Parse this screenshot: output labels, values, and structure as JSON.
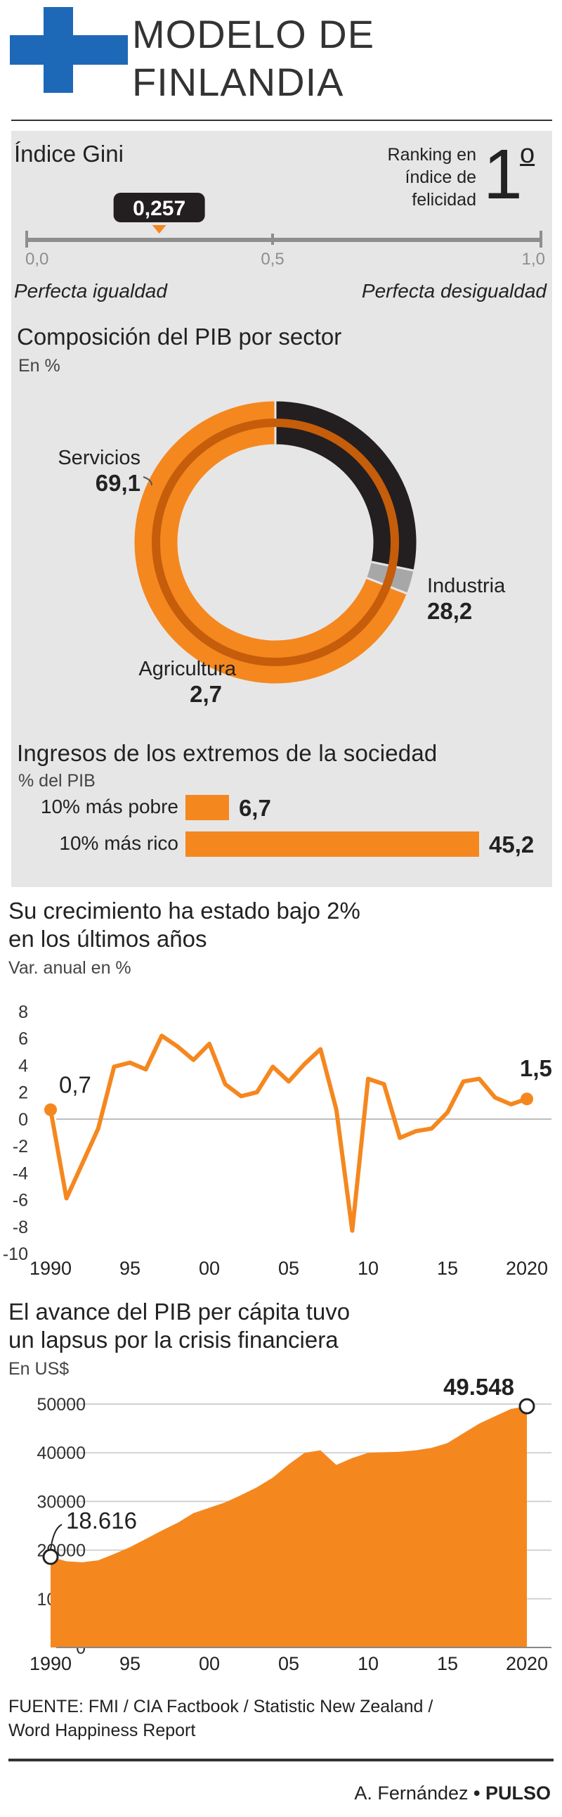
{
  "header": {
    "title_line1": "MODELO DE",
    "title_line2": "FINLANDIA",
    "flag_colors": {
      "cross": "#1e68b8",
      "field": "#ffffff"
    }
  },
  "gini": {
    "title": "Índice Gini",
    "value": "0,257",
    "value_num": 0.257,
    "tick_labels": [
      "0,0",
      "0,5",
      "1,0"
    ],
    "left_label": "Perfecta igualdad",
    "right_label": "Perfecta desigualdad"
  },
  "ranking": {
    "label_lines": [
      "Ranking en",
      "índice de",
      "felicidad"
    ],
    "value": "1",
    "suffix": "o"
  },
  "pib_sector": {
    "title": "Composición del PIB por sector",
    "unit": "En %",
    "chart_data": {
      "type": "pie",
      "categories": [
        "Servicios",
        "Industria",
        "Agricultura"
      ],
      "values": [
        69.1,
        28.2,
        2.7
      ],
      "value_labels": [
        "69,1",
        "28,2",
        "2,7"
      ],
      "colors": [
        "#f5871f",
        "#231f20",
        "#a7a7a7"
      ]
    }
  },
  "ingresos": {
    "title": "Ingresos de los extremos de la sociedad",
    "unit": "% del PIB",
    "chart_data": {
      "type": "bar",
      "categories": [
        "10% más pobre",
        "10% más rico"
      ],
      "values": [
        6.7,
        45.2
      ],
      "value_labels": [
        "6,7",
        "45,2"
      ],
      "color": "#f5871f"
    }
  },
  "crecimiento": {
    "title_line1": "Su crecimiento ha estado bajo 2%",
    "title_line2": "en los últimos años",
    "unit": "Var. anual en %",
    "chart_data": {
      "type": "line",
      "x": [
        1990,
        1991,
        1992,
        1993,
        1994,
        1995,
        1996,
        1997,
        1998,
        1999,
        2000,
        2001,
        2002,
        2003,
        2004,
        2005,
        2006,
        2007,
        2008,
        2009,
        2010,
        2011,
        2012,
        2013,
        2014,
        2015,
        2016,
        2017,
        2018,
        2019,
        2020
      ],
      "values": [
        0.7,
        -5.9,
        -3.3,
        -0.7,
        3.9,
        4.2,
        3.7,
        6.2,
        5.4,
        4.4,
        5.6,
        2.6,
        1.7,
        2.0,
        3.9,
        2.8,
        4.1,
        5.2,
        0.7,
        -8.3,
        3.0,
        2.6,
        -1.4,
        -0.9,
        -0.7,
        0.5,
        2.8,
        3.0,
        1.6,
        1.1,
        1.5
      ],
      "ylim": [
        -10,
        8
      ],
      "yticks": [
        -10,
        -8,
        -6,
        -4,
        -2,
        0,
        2,
        4,
        6,
        8
      ],
      "xtick_values": [
        1990,
        1995,
        2000,
        2005,
        2010,
        2015,
        2020
      ],
      "xtick_labels": [
        "1990",
        "95",
        "00",
        "05",
        "10",
        "15",
        "2020"
      ],
      "annotations": [
        {
          "x": 1990,
          "label": "0,7"
        },
        {
          "x": 2020,
          "label": "1,5"
        }
      ],
      "color": "#f5871f"
    }
  },
  "pib_percapita": {
    "title_line1": "El avance del PIB per cápita tuvo",
    "title_line2": "un lapsus por la crisis financiera",
    "unit": "En US$",
    "chart_data": {
      "type": "area",
      "x": [
        1990,
        1991,
        1992,
        1993,
        1994,
        1995,
        1996,
        1997,
        1998,
        1999,
        2000,
        2001,
        2002,
        2003,
        2004,
        2005,
        2006,
        2007,
        2008,
        2009,
        2010,
        2011,
        2012,
        2013,
        2014,
        2015,
        2016,
        2017,
        2018,
        2019,
        2020
      ],
      "values": [
        18616,
        17700,
        17500,
        17900,
        19200,
        20600,
        22300,
        24000,
        25600,
        27600,
        28700,
        29800,
        31300,
        32900,
        34900,
        37600,
        40000,
        40500,
        37500,
        38900,
        40000,
        40100,
        40200,
        40500,
        41000,
        42000,
        44000,
        46000,
        47500,
        49000,
        49548
      ],
      "ylim": [
        0,
        50000
      ],
      "yticks": [
        0,
        10000,
        20000,
        30000,
        40000,
        50000
      ],
      "xtick_values": [
        1990,
        1995,
        2000,
        2005,
        2010,
        2015,
        2020
      ],
      "xtick_labels": [
        "1990",
        "95",
        "00",
        "05",
        "10",
        "15",
        "2020"
      ],
      "annotations": [
        {
          "x": 1990,
          "label": "18.616"
        },
        {
          "x": 2020,
          "label": "49.548"
        }
      ],
      "color": "#f5871f"
    }
  },
  "footer": {
    "source_line1": "FUENTE: FMI / CIA Factbook / Statistic New Zealand /",
    "source_line2": "Word Happiness Report",
    "author": "A. Fernández",
    "bullet": "•",
    "brand": "PULSO"
  }
}
